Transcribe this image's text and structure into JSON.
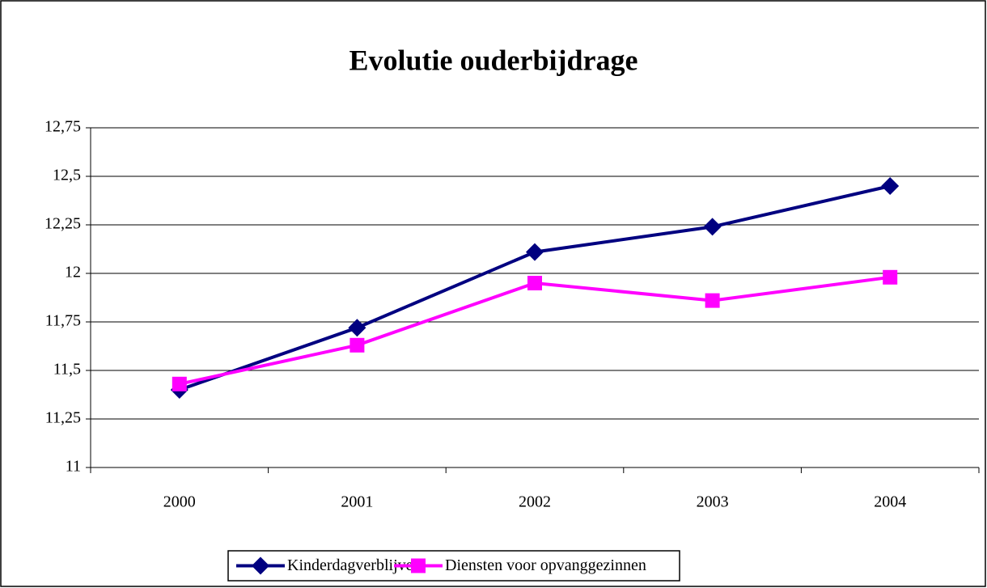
{
  "chart_data": {
    "type": "line",
    "title": "Evolutie ouderbijdrage",
    "categories": [
      "2000",
      "2001",
      "2002",
      "2003",
      "2004"
    ],
    "series": [
      {
        "name": "Kinderdagverblijven",
        "color": "#000080",
        "marker": "diamond",
        "values": [
          11.4,
          11.72,
          12.11,
          12.24,
          12.45
        ]
      },
      {
        "name": "Diensten voor opvanggezinnen",
        "color": "#ff00ff",
        "marker": "square",
        "values": [
          11.43,
          11.63,
          11.95,
          11.86,
          11.98
        ]
      }
    ],
    "ylim": [
      11,
      12.75
    ],
    "yticks": [
      11,
      {
        "value": 11.25,
        "label": "11,25"
      },
      {
        "value": 11.5,
        "label": "11,5"
      },
      {
        "value": 11.75,
        "label": "11,75"
      },
      12,
      {
        "value": 12.25,
        "label": "12,25"
      },
      {
        "value": 12.5,
        "label": "12,5"
      },
      {
        "value": 12.75,
        "label": "12,75"
      }
    ],
    "grid": true,
    "legend": "bottom"
  }
}
